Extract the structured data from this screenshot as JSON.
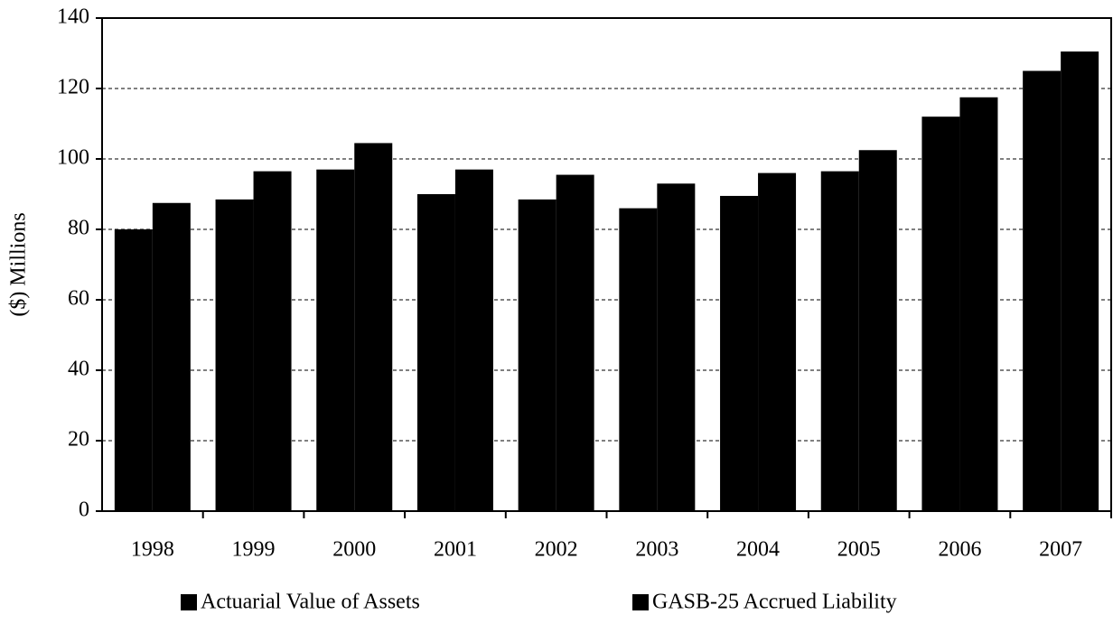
{
  "chart_data": {
    "type": "bar",
    "y_label": "($) Millions",
    "categories": [
      "1998",
      "1999",
      "2000",
      "2001",
      "2002",
      "2003",
      "2004",
      "2005",
      "2006",
      "2007"
    ],
    "series": [
      {
        "name": "Actuarial Value of Assets",
        "color": "#000000",
        "values": [
          80,
          88.5,
          97,
          90,
          88.5,
          86,
          89.5,
          96.5,
          112,
          125
        ]
      },
      {
        "name": "GASB-25 Accrued Liability",
        "color": "#000000",
        "values": [
          87.5,
          96.5,
          104.5,
          97,
          95.5,
          93,
          96,
          102.5,
          117.5,
          130.5
        ]
      }
    ],
    "ylim": [
      0,
      140
    ],
    "yticks": [
      0,
      20,
      40,
      60,
      80,
      100,
      120,
      140
    ],
    "grid": true,
    "legend": "bottom"
  }
}
